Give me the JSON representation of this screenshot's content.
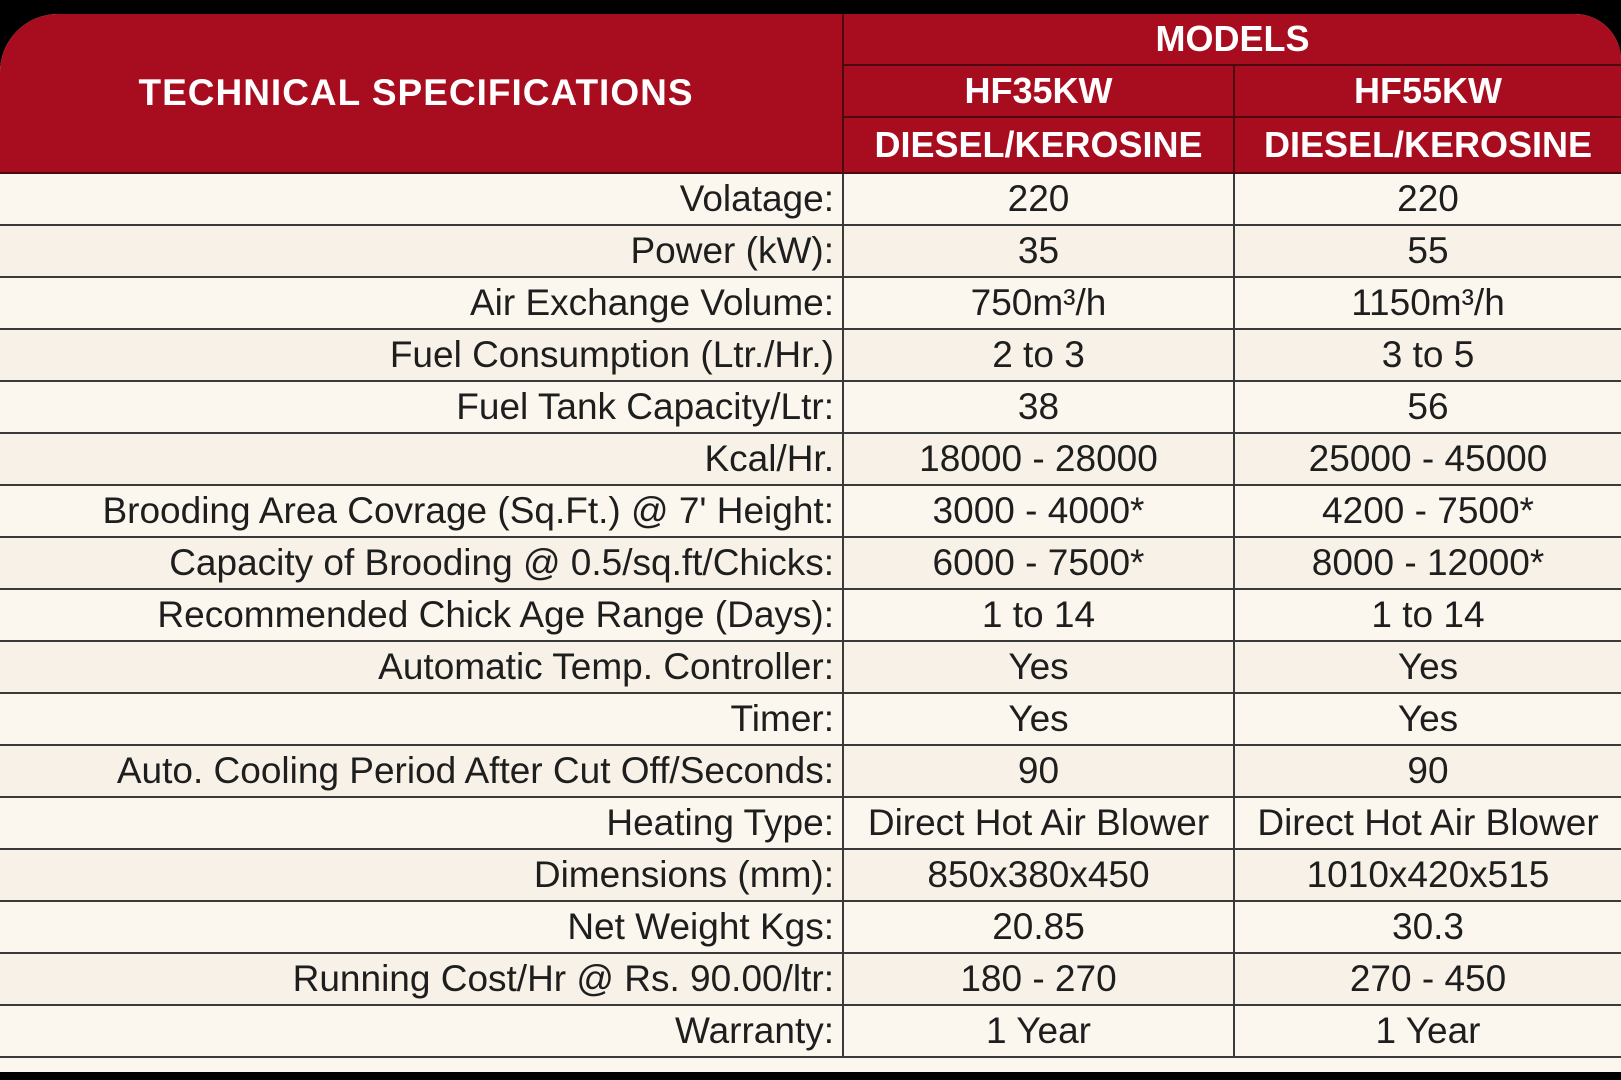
{
  "header": {
    "title": "TECHNICAL SPECIFICATIONS",
    "group_label": "MODELS",
    "models": [
      {
        "name": "HF35KW",
        "fuel": "DIESEL/KEROSINE"
      },
      {
        "name": "HF55KW",
        "fuel": "DIESEL/KEROSINE"
      }
    ]
  },
  "rows": [
    {
      "label": "Volatage:",
      "values": [
        "220",
        "220"
      ]
    },
    {
      "label": "Power (kW):",
      "values": [
        "35",
        "55"
      ]
    },
    {
      "label": "Air Exchange Volume:",
      "values": [
        "750m³/h",
        "1150m³/h"
      ]
    },
    {
      "label": "Fuel Consumption (Ltr./Hr.)",
      "values": [
        "2 to 3",
        "3 to 5"
      ]
    },
    {
      "label": "Fuel Tank Capacity/Ltr:",
      "values": [
        "38",
        "56"
      ]
    },
    {
      "label": "Kcal/Hr.",
      "values": [
        "18000 - 28000",
        "25000 - 45000"
      ]
    },
    {
      "label": "Brooding Area Covrage (Sq.Ft.) @ 7' Height:",
      "values": [
        "3000 - 4000*",
        "4200 - 7500*"
      ]
    },
    {
      "label": "Capacity of Brooding @ 0.5/sq.ft/Chicks:",
      "values": [
        "6000 - 7500*",
        "8000 - 12000*"
      ]
    },
    {
      "label": "Recommended Chick Age Range (Days):",
      "values": [
        "1 to 14",
        "1 to 14"
      ]
    },
    {
      "label": "Automatic Temp. Controller:",
      "values": [
        "Yes",
        "Yes"
      ]
    },
    {
      "label": "Timer:",
      "values": [
        "Yes",
        "Yes"
      ]
    },
    {
      "label": "Auto. Cooling Period After Cut Off/Seconds:",
      "values": [
        "90",
        "90"
      ]
    },
    {
      "label": "Heating Type:",
      "values": [
        "Direct Hot Air Blower",
        "Direct Hot Air Blower"
      ]
    },
    {
      "label": "Dimensions (mm):",
      "values": [
        "850x380x450",
        "1010x420x515"
      ]
    },
    {
      "label": "Net Weight Kgs:",
      "values": [
        "20.85",
        "30.3"
      ]
    },
    {
      "label": "Running Cost/Hr @ Rs. 90.00/ltr:",
      "values": [
        "180 - 270",
        "270 - 450"
      ]
    },
    {
      "label": "Warranty:",
      "values": [
        "1 Year",
        "1 Year"
      ]
    }
  ],
  "colors": {
    "header_red": "#a80c1f",
    "row_background": "#fbf6ee",
    "grid_line": "#3a3a3a",
    "outer_background": "#000000"
  }
}
